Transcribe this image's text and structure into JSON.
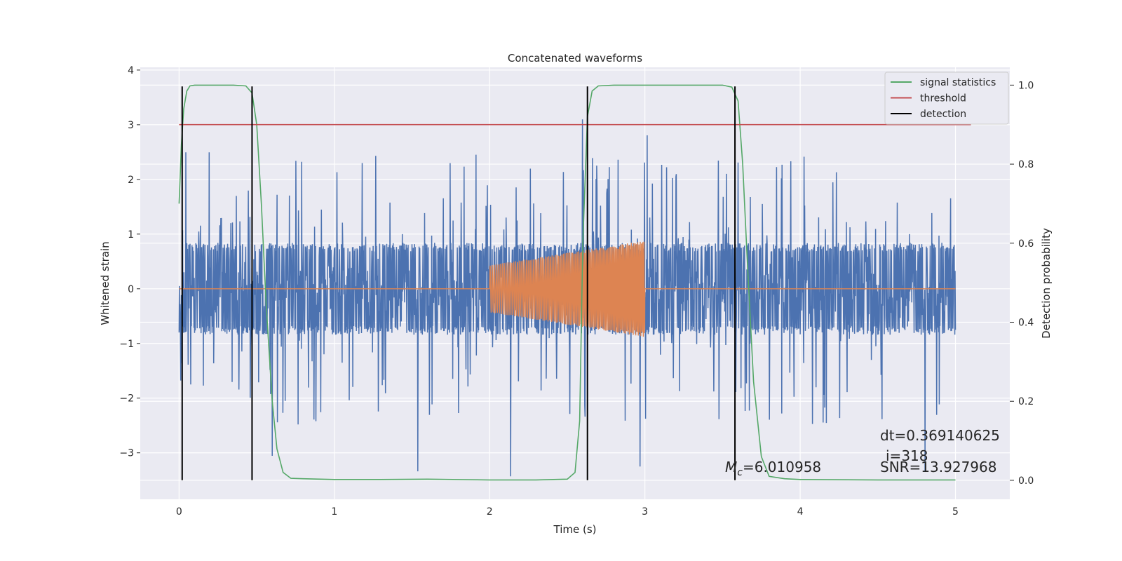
{
  "chart_data": {
    "type": "line",
    "title": "Concatenated waveforms",
    "xlabel": "Time (s)",
    "ylabel": "Whitened strain",
    "y2label": "Detection probability",
    "xlim": [
      -0.25,
      5.35
    ],
    "ylim": [
      -3.85,
      4.05
    ],
    "y2lim": [
      -0.048,
      1.045
    ],
    "xticks": [
      0,
      1,
      2,
      3,
      4,
      5
    ],
    "xtick_labels": [
      "0",
      "1",
      "2",
      "3",
      "4",
      "5"
    ],
    "yticks": [
      -3,
      -2,
      -1,
      0,
      1,
      2,
      3,
      4
    ],
    "ytick_labels": [
      "−3",
      "−2",
      "−1",
      "0",
      "1",
      "2",
      "3",
      "4"
    ],
    "y2ticks": [
      0.0,
      0.2,
      0.4,
      0.6,
      0.8,
      1.0
    ],
    "y2tick_labels": [
      "0.0",
      "0.2",
      "0.4",
      "0.6",
      "0.8",
      "1.0"
    ],
    "grid": true,
    "legend_position": "top-right",
    "background": "#eaeaf2",
    "series": [
      {
        "name": "",
        "axis": "left",
        "color": "#4c72b0",
        "kind": "noise",
        "x_range": [
          0,
          5
        ],
        "envelope": 0.8,
        "typical_peak": 2.2
      },
      {
        "name": "",
        "axis": "left",
        "color": "#dd8452",
        "kind": "chirp",
        "x_range": [
          0,
          5
        ],
        "signal_x_range": [
          2.0,
          3.0
        ],
        "amplitude_start": 0.43,
        "amplitude_end": 0.88
      },
      {
        "name": "signal statistics",
        "axis": "right",
        "color": "#55a868",
        "x": [
          0.0,
          0.015,
          0.03,
          0.05,
          0.07,
          0.1,
          0.2,
          0.35,
          0.43,
          0.47,
          0.5,
          0.53,
          0.56,
          0.6,
          0.63,
          0.67,
          0.72,
          0.8,
          1.0,
          1.3,
          1.6,
          2.0,
          2.3,
          2.5,
          2.55,
          2.58,
          2.6,
          2.63,
          2.66,
          2.7,
          2.8,
          3.0,
          3.3,
          3.5,
          3.56,
          3.6,
          3.63,
          3.66,
          3.7,
          3.75,
          3.8,
          3.9,
          4.0,
          4.5,
          5.0
        ],
        "y": [
          0.7,
          0.85,
          0.94,
          0.985,
          0.998,
          1.0,
          1.0,
          1.0,
          0.998,
          0.98,
          0.9,
          0.7,
          0.45,
          0.2,
          0.08,
          0.02,
          0.005,
          0.004,
          0.002,
          0.002,
          0.003,
          0.001,
          0.001,
          0.003,
          0.02,
          0.15,
          0.6,
          0.92,
          0.985,
          0.998,
          1.0,
          1.0,
          1.0,
          1.0,
          0.995,
          0.96,
          0.8,
          0.55,
          0.25,
          0.06,
          0.01,
          0.004,
          0.002,
          0.001,
          0.001
        ]
      },
      {
        "name": "threshold",
        "axis": "right",
        "color": "#c44e52",
        "x": [
          0.0,
          5.1
        ],
        "y": [
          0.9,
          0.9
        ]
      },
      {
        "name": "detection",
        "axis": "left",
        "color": "#000000",
        "kind": "vlines",
        "x": [
          0.02,
          0.47,
          2.63,
          3.58
        ],
        "y_range": [
          -3.5,
          3.7
        ]
      }
    ],
    "annotations": {
      "mc_symbol": "M",
      "mc_subscript": "c",
      "mc_value": "=6.010958",
      "dt": "dt=0.369140625",
      "i": "i=318",
      "snr": "SNR=13.927968"
    }
  }
}
